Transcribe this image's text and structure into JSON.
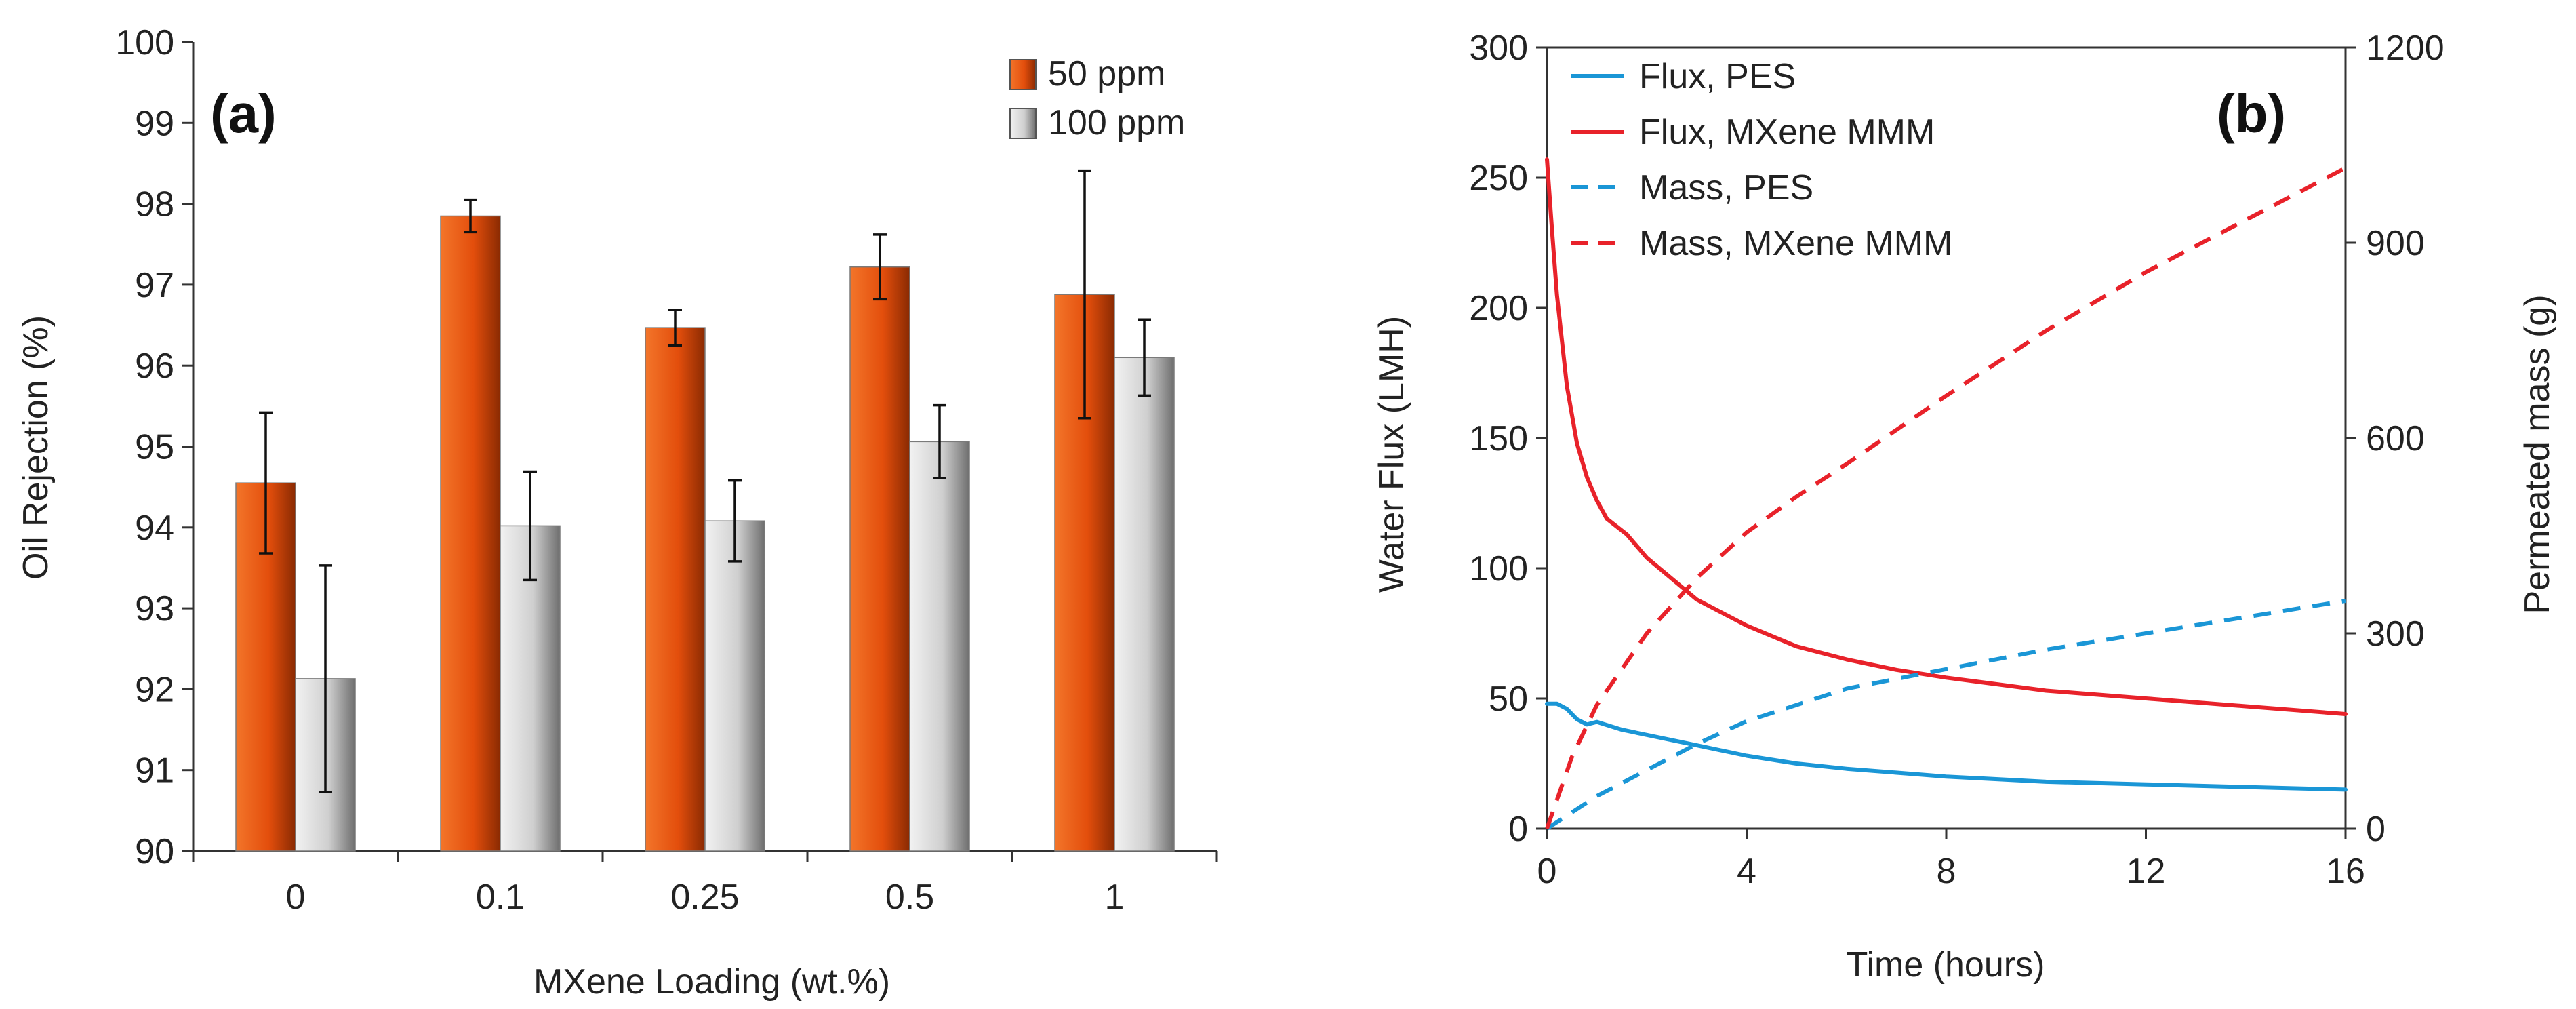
{
  "chart_data": [
    {
      "type": "bar",
      "panel_label": "(a)",
      "xlabel": "MXene Loading (wt.%)",
      "ylabel": "Oil Rejection (%)",
      "ylim": [
        90,
        100
      ],
      "yticks": [
        90,
        91,
        92,
        93,
        94,
        95,
        96,
        97,
        98,
        99,
        100
      ],
      "categories": [
        "0",
        "0.1",
        "0.25",
        "0.5",
        "1"
      ],
      "legend_position": "top-right",
      "series": [
        {
          "name": "50 ppm",
          "color": "#e8500f",
          "values": [
            94.55,
            97.85,
            96.47,
            97.22,
            96.88
          ],
          "errors": [
            0.87,
            0.2,
            0.22,
            0.4,
            1.53
          ]
        },
        {
          "name": "100 ppm",
          "color": "#c8c8c8",
          "values": [
            92.13,
            94.02,
            94.08,
            95.06,
            96.1
          ],
          "errors": [
            1.4,
            0.67,
            0.5,
            0.45,
            0.47
          ]
        }
      ]
    },
    {
      "type": "line",
      "panel_label": "(b)",
      "xlabel": "Time (hours)",
      "ylabel": "Water Flux (LMH)",
      "ylabel_right": "Permeated mass (g)",
      "xlim": [
        0,
        16
      ],
      "xticks": [
        0,
        4,
        8,
        12,
        16
      ],
      "ylim": [
        0,
        300
      ],
      "yticks": [
        0,
        50,
        100,
        150,
        200,
        250,
        300
      ],
      "ylim_right": [
        0,
        1200
      ],
      "yticks_right": [
        0,
        300,
        600,
        900,
        1200
      ],
      "legend_position": "top-left",
      "series": [
        {
          "name": "Flux, PES",
          "axis": "left",
          "style": "solid",
          "color": "#1a96d6",
          "x": [
            0,
            0.2,
            0.4,
            0.6,
            0.8,
            1,
            1.5,
            2,
            3,
            4,
            5,
            6,
            8,
            10,
            12,
            14,
            16
          ],
          "y": [
            48,
            48,
            46,
            42,
            40,
            41,
            38,
            36,
            32,
            28,
            25,
            23,
            20,
            18,
            17,
            16,
            15
          ]
        },
        {
          "name": "Flux, MXene MMM",
          "axis": "left",
          "style": "solid",
          "color": "#e8222a",
          "x": [
            0,
            0.1,
            0.2,
            0.4,
            0.6,
            0.8,
            1,
            1.2,
            1.6,
            2,
            3,
            4,
            5,
            6,
            7,
            8,
            10,
            12,
            14,
            16
          ],
          "y": [
            257,
            230,
            205,
            170,
            148,
            135,
            126,
            119,
            113,
            104,
            88,
            78,
            70,
            65,
            61,
            58,
            53,
            50,
            47,
            44
          ]
        },
        {
          "name": "Mass, PES",
          "axis": "right",
          "style": "dashed",
          "color": "#1a96d6",
          "x": [
            0,
            1,
            2,
            3,
            4,
            6,
            8,
            10,
            12,
            14,
            16
          ],
          "y": [
            0,
            50,
            90,
            130,
            165,
            215,
            245,
            275,
            300,
            325,
            350
          ]
        },
        {
          "name": "Mass, MXene MMM",
          "axis": "right",
          "style": "dashed",
          "color": "#e8222a",
          "x": [
            0,
            0.5,
            1,
            2,
            3,
            4,
            5,
            6,
            8,
            10,
            12,
            14,
            16
          ],
          "y": [
            0,
            110,
            190,
            300,
            385,
            455,
            510,
            560,
            665,
            765,
            855,
            935,
            1015
          ]
        }
      ]
    }
  ]
}
